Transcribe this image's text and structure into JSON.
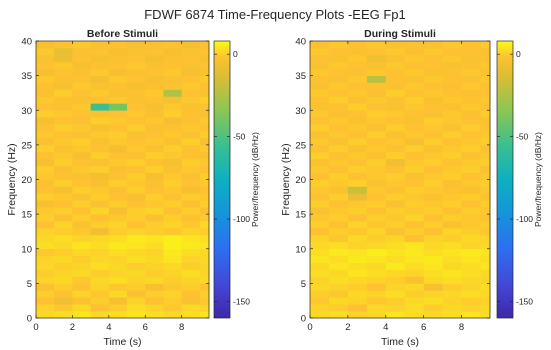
{
  "figure": {
    "title": "FDWF 6874 Time-Frequency Plots -EEG Fp1"
  },
  "chart_data": [
    {
      "type": "heatmap",
      "title": "Before Stimuli",
      "xlabel": "Time (s)",
      "ylabel": "Frequency (Hz)",
      "xlim": [
        0,
        9.5
      ],
      "ylim": [
        0,
        40
      ],
      "xticks": [
        "0",
        "2",
        "4",
        "6",
        "8"
      ],
      "yticks": [
        "0",
        "5",
        "10",
        "15",
        "20",
        "25",
        "30",
        "35",
        "40"
      ],
      "colorbar": {
        "label": "Power/frequency (dB/Hz)",
        "clim": [
          -160,
          8
        ],
        "ticks": [
          "0",
          "-50",
          "-100",
          "-150"
        ]
      },
      "grid": {
        "time_bin": 1.0,
        "freq_bin": 1.0,
        "rows_bottom_to_top": [
          [
            2,
            3,
            4,
            2,
            3,
            4,
            3,
            2,
            3,
            4
          ],
          [
            1,
            -1,
            2,
            -2,
            0,
            3,
            1,
            -1,
            2,
            1
          ],
          [
            -2,
            -6,
            -3,
            0,
            -4,
            1,
            -2,
            0,
            -3,
            -1
          ],
          [
            0,
            -2,
            1,
            -1,
            2,
            -3,
            0,
            1,
            -2,
            0
          ],
          [
            -3,
            0,
            -2,
            1,
            -1,
            0,
            -4,
            -1,
            0,
            -2
          ],
          [
            1,
            2,
            -1,
            2,
            3,
            1,
            2,
            0,
            1,
            2
          ],
          [
            0,
            1,
            2,
            0,
            1,
            2,
            0,
            1,
            3,
            1
          ],
          [
            2,
            0,
            1,
            3,
            2,
            0,
            1,
            2,
            0,
            1
          ],
          [
            1,
            2,
            0,
            2,
            1,
            3,
            2,
            4,
            1,
            2
          ],
          [
            -1,
            0,
            2,
            1,
            3,
            2,
            1,
            5,
            3,
            2
          ],
          [
            3,
            2,
            4,
            3,
            5,
            4,
            3,
            6,
            5,
            4
          ],
          [
            2,
            3,
            1,
            2,
            3,
            5,
            4,
            6,
            4,
            3
          ],
          [
            1,
            0,
            -1,
            -6,
            0,
            1,
            0,
            -1,
            1,
            0
          ],
          [
            -2,
            1,
            -3,
            0,
            1,
            -2,
            0,
            1,
            -1,
            2
          ],
          [
            0,
            -3,
            0,
            -2,
            -1,
            0,
            -3,
            0,
            -2,
            -1
          ],
          [
            -1,
            0,
            -2,
            1,
            -4,
            0,
            1,
            -2,
            0,
            -3
          ],
          [
            -4,
            -2,
            0,
            -3,
            0,
            -2,
            -1,
            0,
            -3,
            0
          ],
          [
            0,
            -1,
            -3,
            0,
            -2,
            -4,
            0,
            -2,
            0,
            -1
          ],
          [
            -2,
            -4,
            0,
            -1,
            -3,
            0,
            -2,
            -1,
            -4,
            -2
          ],
          [
            -3,
            0,
            -2,
            -4,
            0,
            -1,
            -3,
            0,
            -2,
            -1
          ],
          [
            -1,
            -2,
            -3,
            -5,
            -2,
            0,
            -4,
            -1,
            -3,
            0
          ],
          [
            0,
            -3,
            -1,
            0,
            -3,
            -2,
            0,
            -3,
            -1,
            -2
          ],
          [
            -4,
            0,
            -2,
            -3,
            -1,
            0,
            -2,
            -4,
            0,
            -1
          ],
          [
            -2,
            -1,
            -4,
            0,
            -2,
            -3,
            0,
            -1,
            -2,
            -3
          ],
          [
            0,
            -3,
            -1,
            -2,
            -5,
            -1,
            -3,
            0,
            -2,
            -1
          ],
          [
            -3,
            -1,
            0,
            -3,
            -1,
            -2,
            -1,
            -3,
            0,
            -4
          ],
          [
            -1,
            -2,
            -3,
            -1,
            0,
            -3,
            -2,
            -1,
            -3,
            0
          ],
          [
            -2,
            0,
            -1,
            -4,
            -2,
            0,
            -3,
            -2,
            -1,
            -2
          ],
          [
            -4,
            -2,
            -3,
            0,
            -1,
            -2,
            -1,
            -5,
            -2,
            -1
          ],
          [
            0,
            -1,
            -2,
            -3,
            -2,
            -1,
            -3,
            0,
            -2,
            -3
          ],
          [
            -2,
            -3,
            -1,
            -55,
            -40,
            -2,
            -4,
            -1,
            -3,
            -2
          ],
          [
            -1,
            -2,
            -3,
            -2,
            -1,
            -3,
            -2,
            -4,
            -1,
            0
          ],
          [
            -3,
            0,
            -2,
            -1,
            -3,
            -2,
            -1,
            -25,
            -2,
            -3
          ],
          [
            -2,
            -4,
            -1,
            -3,
            -2,
            -4,
            -3,
            -2,
            -1,
            -2
          ],
          [
            -1,
            -3,
            -2,
            -5,
            -1,
            -2,
            -4,
            -3,
            -2,
            -1
          ],
          [
            -4,
            -2,
            -3,
            -1,
            -4,
            -3,
            -2,
            -1,
            -4,
            -3
          ],
          [
            -2,
            -1,
            -4,
            -3,
            -2,
            -1,
            -3,
            -2,
            -3,
            -2
          ],
          [
            -3,
            -8,
            -2,
            -4,
            -3,
            -2,
            -5,
            -3,
            -2,
            -4
          ],
          [
            -1,
            -9,
            -3,
            -2,
            -4,
            -3,
            -2,
            -4,
            -3,
            -2
          ],
          [
            -4,
            -2,
            -1,
            -3,
            -2,
            -4,
            -3,
            -2,
            -5,
            -3
          ]
        ]
      }
    },
    {
      "type": "heatmap",
      "title": "During Stimuli",
      "xlabel": "Time (s)",
      "ylabel": "Frequency (Hz)",
      "xlim": [
        0,
        9.5
      ],
      "ylim": [
        0,
        40
      ],
      "xticks": [
        "0",
        "2",
        "4",
        "6",
        "8"
      ],
      "yticks": [
        "0",
        "5",
        "10",
        "15",
        "20",
        "25",
        "30",
        "35",
        "40"
      ],
      "colorbar": {
        "label": "Power/frequency (dB/Hz)",
        "clim": [
          -160,
          8
        ],
        "ticks": [
          "0",
          "-50",
          "-100",
          "-150"
        ]
      },
      "grid": {
        "time_bin": 1.0,
        "freq_bin": 1.0,
        "rows_bottom_to_top": [
          [
            2,
            3,
            1,
            2,
            4,
            3,
            2,
            3,
            4,
            3
          ],
          [
            1,
            0,
            -2,
            2,
            1,
            3,
            0,
            2,
            1,
            2
          ],
          [
            -1,
            2,
            1,
            -1,
            0,
            2,
            3,
            1,
            0,
            1
          ],
          [
            0,
            -1,
            2,
            1,
            3,
            0,
            1,
            2,
            3,
            2
          ],
          [
            2,
            1,
            0,
            -2,
            1,
            2,
            -4,
            0,
            1,
            3
          ],
          [
            1,
            3,
            2,
            1,
            0,
            -3,
            2,
            3,
            2,
            1
          ],
          [
            3,
            2,
            4,
            3,
            2,
            1,
            3,
            4,
            3,
            2
          ],
          [
            2,
            4,
            3,
            2,
            5,
            3,
            4,
            2,
            3,
            4
          ],
          [
            4,
            3,
            5,
            4,
            3,
            4,
            5,
            3,
            4,
            3
          ],
          [
            3,
            5,
            4,
            6,
            4,
            5,
            3,
            4,
            5,
            4
          ],
          [
            2,
            3,
            1,
            2,
            3,
            4,
            2,
            3,
            1,
            2
          ],
          [
            1,
            -1,
            2,
            0,
            1,
            -2,
            1,
            0,
            2,
            1
          ],
          [
            -2,
            0,
            -1,
            1,
            -3,
            0,
            -2,
            1,
            0,
            -1
          ],
          [
            0,
            -2,
            1,
            -1,
            0,
            -2,
            0,
            -3,
            -1,
            0
          ],
          [
            -1,
            0,
            -2,
            0,
            -1,
            1,
            -2,
            0,
            -1,
            -2
          ],
          [
            -3,
            -1,
            0,
            -2,
            0,
            -1,
            0,
            -2,
            0,
            -1
          ],
          [
            0,
            -2,
            -1,
            0,
            -3,
            0,
            -1,
            0,
            -2,
            0
          ],
          [
            -2,
            0,
            -8,
            -2,
            0,
            -1,
            -3,
            -1,
            0,
            -2
          ],
          [
            -1,
            -3,
            -18,
            -1,
            -2,
            0,
            -1,
            -2,
            -3,
            -1
          ],
          [
            0,
            -1,
            0,
            -3,
            -1,
            -2,
            0,
            -3,
            -1,
            0
          ],
          [
            -2,
            0,
            -2,
            -1,
            0,
            -3,
            -1,
            0,
            -2,
            -1
          ],
          [
            -1,
            -2,
            0,
            -1,
            -2,
            0,
            -2,
            -1,
            0,
            -3
          ],
          [
            -3,
            -1,
            -2,
            0,
            -6,
            -1,
            0,
            -2,
            -1,
            0
          ],
          [
            0,
            -2,
            -1,
            -3,
            0,
            -2,
            -1,
            0,
            -3,
            -1
          ],
          [
            -2,
            0,
            -3,
            -1,
            -2,
            0,
            -3,
            -1,
            0,
            -2
          ],
          [
            -1,
            -3,
            0,
            -2,
            -1,
            -4,
            0,
            -2,
            -1,
            0
          ],
          [
            -3,
            -1,
            -2,
            0,
            -3,
            -1,
            -2,
            0,
            -2,
            -1
          ],
          [
            0,
            -2,
            -1,
            -3,
            0,
            -2,
            -1,
            -3,
            0,
            -2
          ],
          [
            -2,
            -1,
            -3,
            -1,
            -2,
            -3,
            0,
            -1,
            -2,
            -3
          ],
          [
            -1,
            -3,
            -2,
            0,
            -1,
            -2,
            -3,
            -1,
            -3,
            0
          ],
          [
            -3,
            -2,
            0,
            -2,
            -3,
            -1,
            -2,
            -3,
            -1,
            -2
          ],
          [
            -2,
            0,
            -3,
            -1,
            -2,
            0,
            -3,
            -1,
            -2,
            -1
          ],
          [
            -1,
            -2,
            -1,
            -3,
            0,
            -2,
            -1,
            -2,
            -3,
            -2
          ],
          [
            -3,
            -1,
            -2,
            -2,
            -3,
            -1,
            -2,
            -3,
            -1,
            -3
          ],
          [
            -2,
            -3,
            -1,
            -22,
            -2,
            -3,
            -1,
            -2,
            -3,
            -1
          ],
          [
            -1,
            -2,
            -3,
            -1,
            -2,
            -1,
            -3,
            -2,
            -1,
            -2
          ],
          [
            -3,
            -1,
            -2,
            -3,
            -1,
            -2,
            -2,
            -3,
            -2,
            -1
          ],
          [
            -2,
            -3,
            -1,
            -6,
            -3,
            -1,
            -2,
            -1,
            -3,
            -2
          ],
          [
            -1,
            -2,
            -3,
            -2,
            -1,
            -3,
            -1,
            -2,
            -2,
            -3
          ],
          [
            -3,
            -1,
            -2,
            -1,
            -3,
            -2,
            -3,
            -1,
            -2,
            -1
          ]
        ]
      }
    }
  ]
}
